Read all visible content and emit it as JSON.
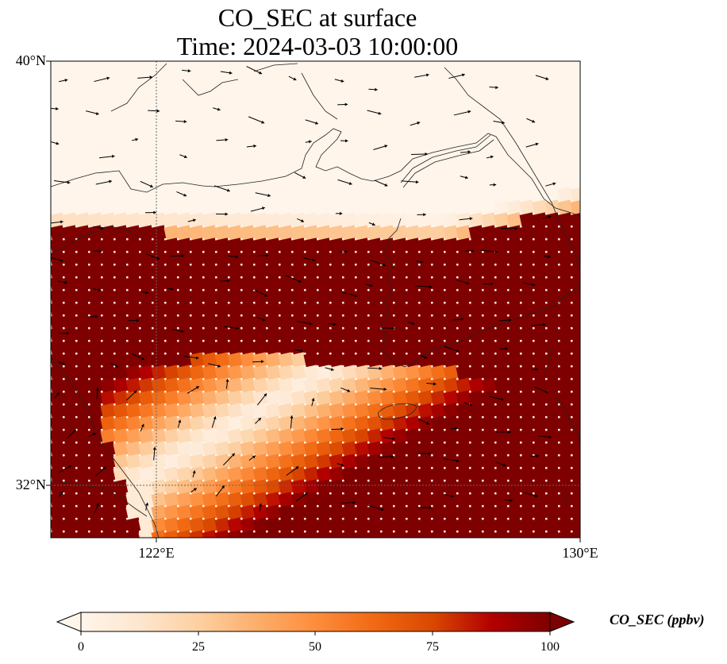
{
  "title": {
    "line1": "CO_SEC at surface",
    "line2": "Time: 2024-03-03 10:00:00"
  },
  "map": {
    "lon_range": [
      120,
      130
    ],
    "lat_range": [
      31,
      40
    ],
    "lat_ticks": [
      {
        "value": 40,
        "label": "40°N"
      },
      {
        "value": 32,
        "label": "32°N"
      }
    ],
    "lon_ticks": [
      {
        "value": 122,
        "label": "122°E"
      },
      {
        "value": 130,
        "label": "130°E"
      }
    ],
    "gridlines": "dotted at 122°E and 32°N",
    "field": "CO_SEC",
    "regions": [
      "high values (100+) in band from Shandong peninsula eastward across Korea",
      "low values over northern land (Liaoning, Bohai)",
      "low-moderate plume over East China Sea with red edges"
    ]
  },
  "colorbar": {
    "label": "CO_SEC (ppbv)",
    "ticks": [
      "0",
      "25",
      "50",
      "75",
      "100"
    ],
    "min": 0,
    "max": 100,
    "extend": "both",
    "colors": [
      "#fff5eb",
      "#fee6ce",
      "#fdd0a2",
      "#fdae6b",
      "#fd8d3c",
      "#f16913",
      "#d94801",
      "#b30000",
      "#7f0000"
    ]
  }
}
